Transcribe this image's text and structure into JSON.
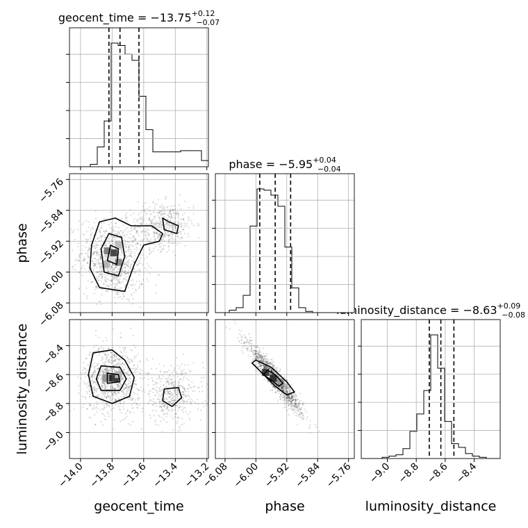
{
  "chart_data": {
    "type": "corner",
    "parameters": [
      "geocent_time",
      "phase",
      "luminosity_distance"
    ],
    "axis_labels": [
      "geocent_time",
      "phase",
      "luminosity_distance"
    ],
    "titles": {
      "geocent_time": {
        "name": "geocent_time",
        "median": "−13.75",
        "plus": "+0.12",
        "minus": "−0.07"
      },
      "phase": {
        "name": "phase",
        "median": "−5.95",
        "plus": "+0.04",
        "minus": "−0.04"
      },
      "luminosity_distance": {
        "name": "luminosity_distance",
        "median": "−8.63",
        "plus": "+0.09",
        "minus": "−0.08"
      }
    },
    "ranges": {
      "geocent_time": [
        -14.07,
        -13.19
      ],
      "phase": [
        -6.105,
        -5.745
      ],
      "luminosity_distance": [
        -9.18,
        -8.22
      ]
    },
    "ticks": {
      "geocent_time": [
        -14.0,
        -13.8,
        -13.6,
        -13.4,
        -13.2
      ],
      "phase": [
        -6.08,
        -6.0,
        -5.92,
        -5.84,
        -5.76
      ],
      "luminosity_distance": [
        -9.0,
        -8.8,
        -8.6,
        -8.4
      ]
    },
    "tick_labels": {
      "geocent_time": [
        "−14.0",
        "−13.8",
        "−13.6",
        "−13.4",
        "−13.2"
      ],
      "phase": [
        "−6.08",
        "−6.00",
        "−5.92",
        "−5.84",
        "−5.76"
      ],
      "luminosity_distance": [
        "−9.0",
        "−8.8",
        "−8.6",
        "−8.4"
      ]
    },
    "quantiles": {
      "geocent_time": [
        -13.82,
        -13.75,
        -13.63
      ],
      "phase": [
        -5.99,
        -5.95,
        -5.91
      ],
      "luminosity_distance": [
        -8.71,
        -8.63,
        -8.54
      ]
    },
    "histograms": {
      "geocent_time": {
        "edges_start": -14.07,
        "bin_width": 0.044,
        "counts": [
          0,
          0,
          0,
          0.02,
          0.16,
          0.37,
          1.0,
          0.98,
          0.91,
          0.86,
          0.57,
          0.3,
          0.12,
          0.12,
          0.12,
          0.12,
          0.13,
          0.13,
          0.13,
          0.05,
          0.02,
          0.01
        ]
      },
      "phase": {
        "edges_start": -6.105,
        "bin_width": 0.018,
        "counts": [
          0,
          0,
          0.02,
          0.04,
          0.14,
          0.7,
          1.0,
          0.99,
          0.95,
          0.86,
          0.53,
          0.2,
          0.04,
          0.01,
          0,
          0,
          0,
          0,
          0,
          0
        ]
      },
      "luminosity_distance": {
        "edges_start": -9.18,
        "bin_width": 0.048,
        "counts": [
          0,
          0,
          0,
          0.01,
          0.02,
          0.03,
          0.08,
          0.22,
          0.36,
          0.55,
          1.0,
          0.73,
          0.3,
          0.12,
          0.09,
          0.04,
          0.02,
          0.01,
          0,
          0
        ]
      }
    },
    "pairs": [
      {
        "x": "geocent_time",
        "y": "phase",
        "scatter_clusters": [
          {
            "cx": -13.8,
            "cy": -5.97,
            "sx": 0.1,
            "sy": 0.05,
            "n": 900,
            "rho": -0.2
          },
          {
            "cx": -13.48,
            "cy": -5.88,
            "sx": 0.1,
            "sy": 0.03,
            "n": 500,
            "rho": 0.1
          }
        ],
        "contours": [
          [
            [
              -13.88,
              -6.04
            ],
            [
              -13.72,
              -6.05
            ],
            [
              -13.66,
              -5.98
            ],
            [
              -13.6,
              -5.93
            ],
            [
              -13.5,
              -5.92
            ],
            [
              -13.48,
              -5.9
            ],
            [
              -13.55,
              -5.88
            ],
            [
              -13.68,
              -5.88
            ],
            [
              -13.78,
              -5.86
            ],
            [
              -13.88,
              -5.87
            ],
            [
              -13.93,
              -5.93
            ],
            [
              -13.94,
              -5.99
            ]
          ],
          [
            [
              -13.85,
              -6.0
            ],
            [
              -13.76,
              -6.01
            ],
            [
              -13.72,
              -5.96
            ],
            [
              -13.74,
              -5.91
            ],
            [
              -13.82,
              -5.9
            ],
            [
              -13.87,
              -5.94
            ]
          ],
          [
            [
              -13.83,
              -5.97
            ],
            [
              -13.77,
              -5.98
            ],
            [
              -13.76,
              -5.94
            ],
            [
              -13.81,
              -5.93
            ]
          ],
          [
            [
              -13.47,
              -5.89
            ],
            [
              -13.39,
              -5.9
            ],
            [
              -13.38,
              -5.88
            ],
            [
              -13.44,
              -5.87
            ],
            [
              -13.48,
              -5.86
            ]
          ]
        ],
        "density_cells": [
          {
            "x": -13.81,
            "y": -5.965,
            "w": 0.1
          },
          {
            "x": -13.79,
            "y": -5.95,
            "w": 0.85
          },
          {
            "x": -13.83,
            "y": -5.945,
            "w": 0.55
          },
          {
            "x": -13.76,
            "y": -5.975,
            "w": 0.5
          },
          {
            "x": -13.84,
            "y": -5.98,
            "w": 0.3
          },
          {
            "x": -13.76,
            "y": -5.93,
            "w": 0.25
          }
        ]
      },
      {
        "x": "geocent_time",
        "y": "luminosity_distance",
        "scatter_clusters": [
          {
            "cx": -13.8,
            "cy": -8.63,
            "sx": 0.09,
            "sy": 0.12,
            "n": 900,
            "rho": 0.0
          },
          {
            "cx": -13.42,
            "cy": -8.74,
            "sx": 0.1,
            "sy": 0.1,
            "n": 450,
            "rho": 0.0
          }
        ],
        "contours": [
          [
            [
              -13.92,
              -8.45
            ],
            [
              -13.8,
              -8.43
            ],
            [
              -13.72,
              -8.5
            ],
            [
              -13.66,
              -8.62
            ],
            [
              -13.69,
              -8.75
            ],
            [
              -13.8,
              -8.8
            ],
            [
              -13.92,
              -8.75
            ],
            [
              -13.95,
              -8.6
            ]
          ],
          [
            [
              -13.87,
              -8.54
            ],
            [
              -13.75,
              -8.55
            ],
            [
              -13.71,
              -8.63
            ],
            [
              -13.75,
              -8.71
            ],
            [
              -13.87,
              -8.71
            ],
            [
              -13.9,
              -8.63
            ]
          ],
          [
            [
              -13.83,
              -8.59
            ],
            [
              -13.76,
              -8.6
            ],
            [
              -13.75,
              -8.65
            ],
            [
              -13.83,
              -8.66
            ]
          ],
          [
            [
              -13.47,
              -8.7
            ],
            [
              -13.38,
              -8.69
            ],
            [
              -13.36,
              -8.76
            ],
            [
              -13.42,
              -8.82
            ],
            [
              -13.48,
              -8.78
            ]
          ]
        ],
        "density_cells": [
          {
            "x": -13.81,
            "y": -8.625,
            "w": 1.0
          },
          {
            "x": -13.78,
            "y": -8.625,
            "w": 0.9
          },
          {
            "x": -13.84,
            "y": -8.625,
            "w": 0.45
          },
          {
            "x": -13.76,
            "y": -8.6,
            "w": 0.3
          }
        ]
      },
      {
        "x": "phase",
        "y": "luminosity_distance",
        "scatter_clusters": [
          {
            "cx": -5.95,
            "cy": -8.63,
            "sx": 0.035,
            "sy": 0.12,
            "n": 1200,
            "rho": -0.95
          }
        ],
        "contours": [
          [
            [
              -6.0,
              -8.5
            ],
            [
              -5.96,
              -8.55
            ],
            [
              -5.92,
              -8.65
            ],
            [
              -5.9,
              -8.72
            ],
            [
              -5.92,
              -8.74
            ],
            [
              -5.95,
              -8.68
            ],
            [
              -5.98,
              -8.6
            ],
            [
              -6.01,
              -8.52
            ]
          ],
          [
            [
              -5.97,
              -8.57
            ],
            [
              -5.95,
              -8.6
            ],
            [
              -5.93,
              -8.66
            ],
            [
              -5.94,
              -8.68
            ],
            [
              -5.96,
              -8.64
            ],
            [
              -5.98,
              -8.6
            ]
          ]
        ],
        "density_cells": [
          {
            "x": -5.955,
            "y": -8.625,
            "w": 0.95
          },
          {
            "x": -5.935,
            "y": -8.65,
            "w": 0.45
          },
          {
            "x": -5.975,
            "y": -8.585,
            "w": 0.9
          }
        ]
      }
    ],
    "grid": true
  }
}
